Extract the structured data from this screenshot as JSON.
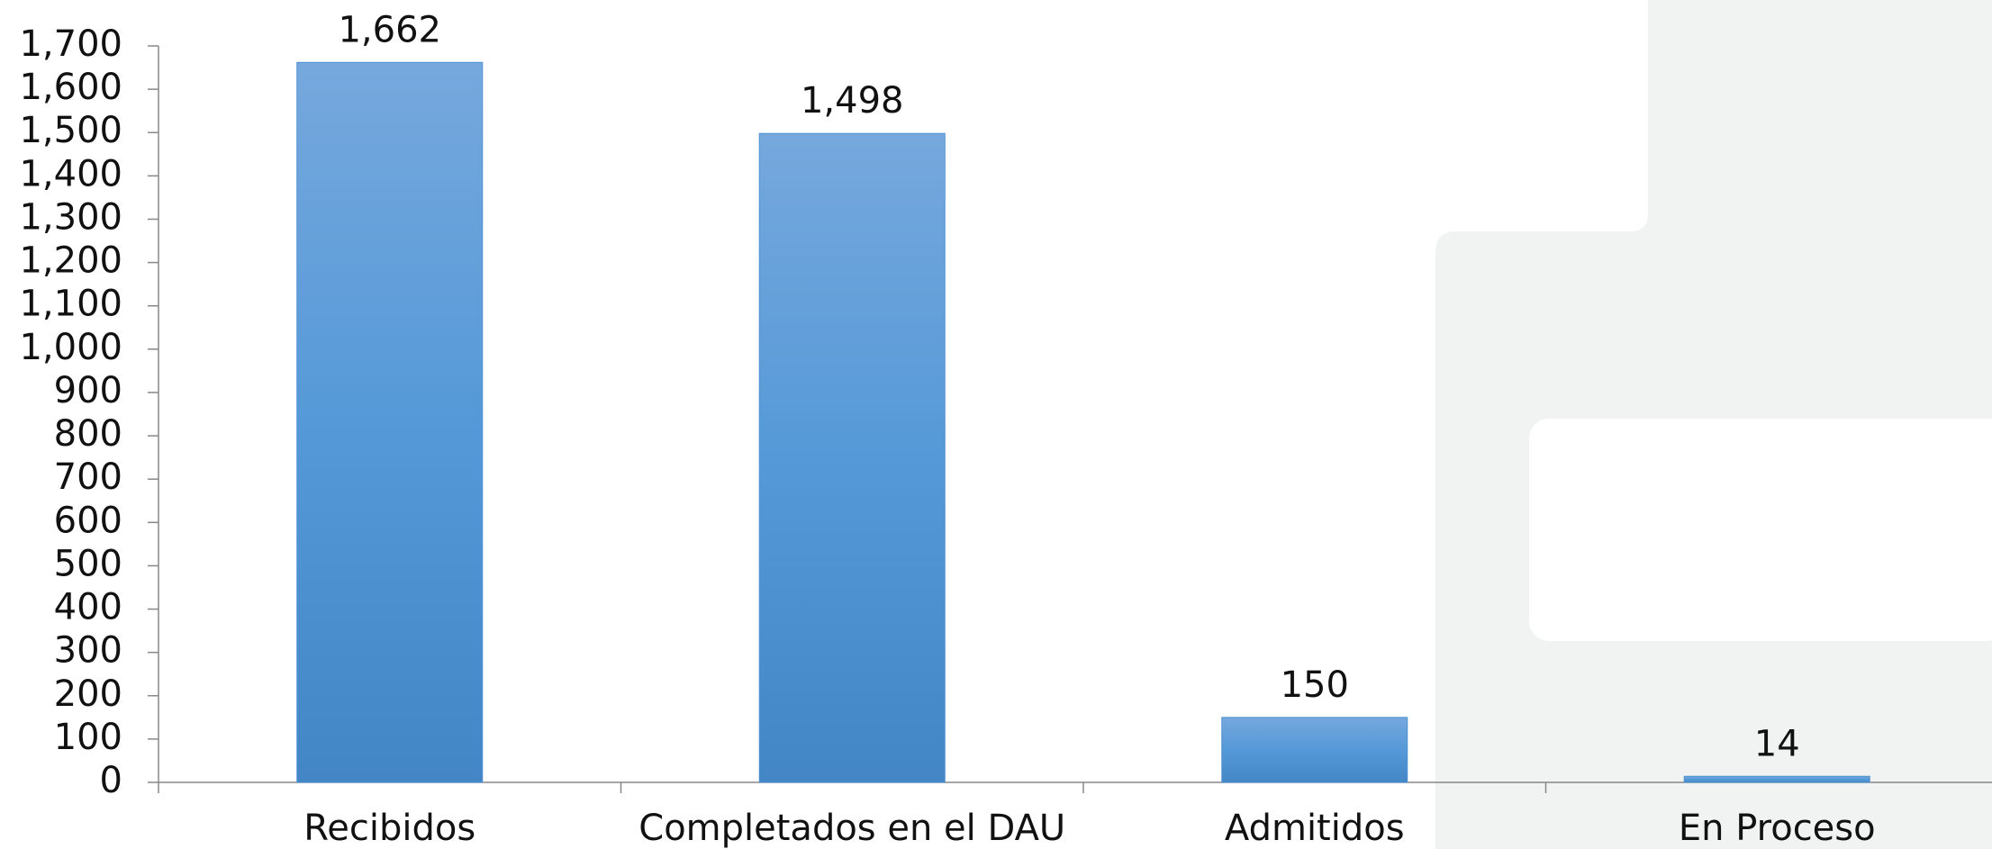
{
  "chart_data": {
    "type": "bar",
    "categories": [
      "Recibidos",
      "Completados en el DAU",
      "Admitidos",
      "En Proceso"
    ],
    "values": [
      1662,
      1498,
      150,
      14
    ],
    "value_labels": [
      "1,662",
      "1,498",
      "150",
      "14"
    ],
    "color": "#4f91d3",
    "ylim": [
      0,
      1700
    ],
    "yticks": [
      0,
      100,
      200,
      300,
      400,
      500,
      600,
      700,
      800,
      900,
      {
        "value": 1000,
        "label": "1,000"
      },
      {
        "value": 1100,
        "label": "1,100"
      },
      {
        "value": 1200,
        "label": "1,200"
      },
      {
        "value": 1300,
        "label": "1,300"
      },
      {
        "value": 1400,
        "label": "1,400"
      },
      {
        "value": 1500,
        "label": "1,500"
      },
      {
        "value": 1600,
        "label": "1,600"
      },
      {
        "value": 1700,
        "label": "1,700"
      }
    ],
    "grid": false
  }
}
